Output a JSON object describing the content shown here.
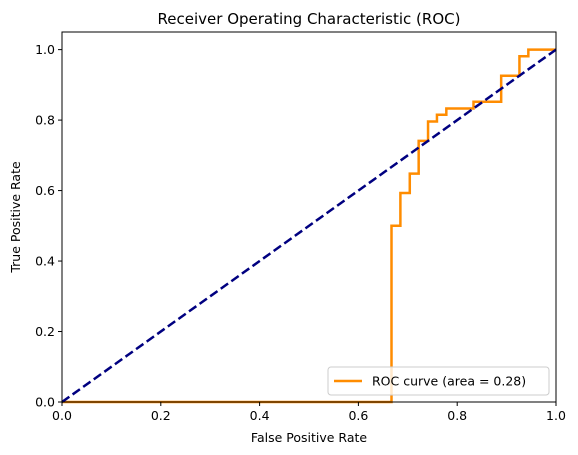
{
  "chart_data": {
    "type": "line",
    "title": "Receiver Operating Characteristic (ROC)",
    "xlabel": "False Positive Rate",
    "ylabel": "True Positive Rate",
    "xlim": [
      0.0,
      1.0
    ],
    "ylim": [
      0.0,
      1.05
    ],
    "xticks": [
      "0.0",
      "0.2",
      "0.4",
      "0.6",
      "0.8",
      "1.0"
    ],
    "yticks": [
      "0.0",
      "0.2",
      "0.4",
      "0.6",
      "0.8",
      "1.0"
    ],
    "grid": false,
    "legend_position": "lower right",
    "series": [
      {
        "name": "ROC curve (area = 0.28)",
        "color": "#ff8c00",
        "style": "solid",
        "step": true,
        "x": [
          0.0,
          0.667,
          0.667,
          0.685,
          0.685,
          0.704,
          0.704,
          0.722,
          0.722,
          0.741,
          0.741,
          0.759,
          0.759,
          0.778,
          0.778,
          0.833,
          0.833,
          0.889,
          0.889,
          0.926,
          0.926,
          0.944,
          0.944,
          1.0
        ],
        "y": [
          0.0,
          0.0,
          0.5,
          0.5,
          0.593,
          0.593,
          0.648,
          0.648,
          0.741,
          0.741,
          0.796,
          0.796,
          0.815,
          0.815,
          0.833,
          0.833,
          0.852,
          0.852,
          0.926,
          0.926,
          0.981,
          0.981,
          1.0,
          1.0
        ]
      },
      {
        "name": "",
        "color": "#000080",
        "style": "dashed",
        "step": false,
        "x": [
          0.0,
          1.0
        ],
        "y": [
          0.0,
          1.0
        ]
      }
    ]
  }
}
